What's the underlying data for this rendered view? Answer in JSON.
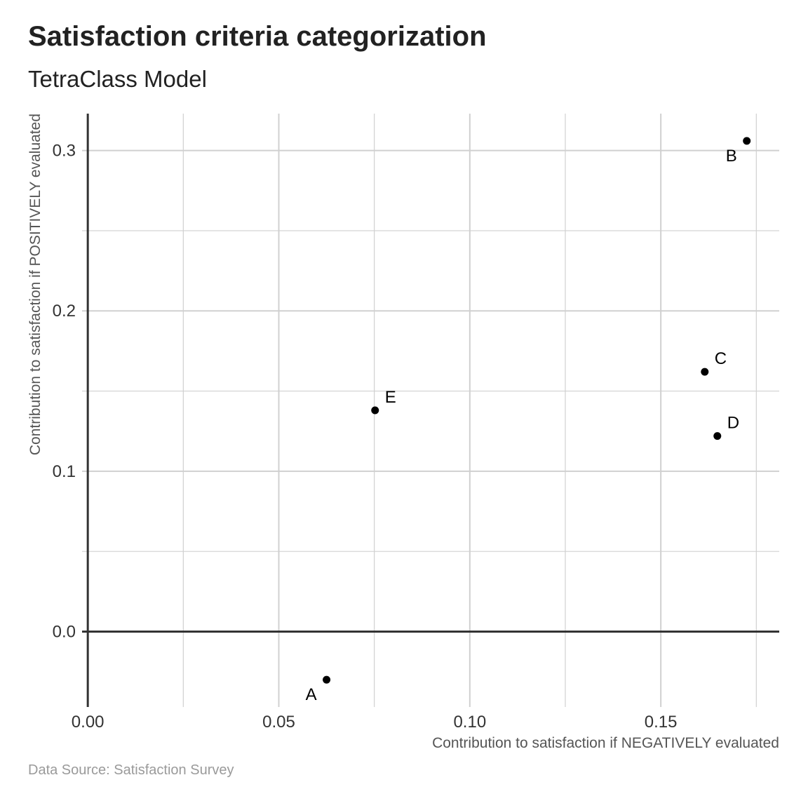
{
  "header": {
    "title": "Satisfaction criteria categorization",
    "subtitle": "TetraClass Model"
  },
  "footer": {
    "caption": "Data Source: Satisfaction Survey"
  },
  "chart_data": {
    "type": "scatter",
    "title": "Satisfaction criteria categorization",
    "subtitle": "TetraClass Model",
    "xlabel": "Contribution to satisfaction if NEGATIVELY evaluated",
    "ylabel": "Contribution to satisfaction if POSITIVELY evaluated",
    "caption": "Data Source: Satisfaction Survey",
    "xlim": [
      -0.0015,
      0.181
    ],
    "ylim": [
      -0.047,
      0.323
    ],
    "x_ticks": [
      0.0,
      0.05,
      0.1,
      0.15
    ],
    "x_tick_labels": [
      "0.00",
      "0.05",
      "0.10",
      "0.15"
    ],
    "y_ticks": [
      0.0,
      0.1,
      0.2,
      0.3
    ],
    "y_tick_labels": [
      "0.0",
      "0.1",
      "0.2",
      "0.3"
    ],
    "x_minor_ticks": [
      0.025,
      0.075,
      0.125,
      0.175
    ],
    "y_minor_ticks": [
      0.05,
      0.15,
      0.25
    ],
    "grid": true,
    "reference_lines": {
      "x": 0,
      "y": 0
    },
    "points": [
      {
        "label": "A",
        "x": 0.0625,
        "y": -0.03,
        "label_pos": "bottom-left"
      },
      {
        "label": "B",
        "x": 0.1725,
        "y": 0.306,
        "label_pos": "bottom-left"
      },
      {
        "label": "C",
        "x": 0.1615,
        "y": 0.162,
        "label_pos": "top-right"
      },
      {
        "label": "D",
        "x": 0.1648,
        "y": 0.122,
        "label_pos": "top-right"
      },
      {
        "label": "E",
        "x": 0.0752,
        "y": 0.138,
        "label_pos": "top-right"
      }
    ],
    "point_color": "#000000",
    "grid_color": "#d0d0d0",
    "reference_line_color": "#333333"
  }
}
